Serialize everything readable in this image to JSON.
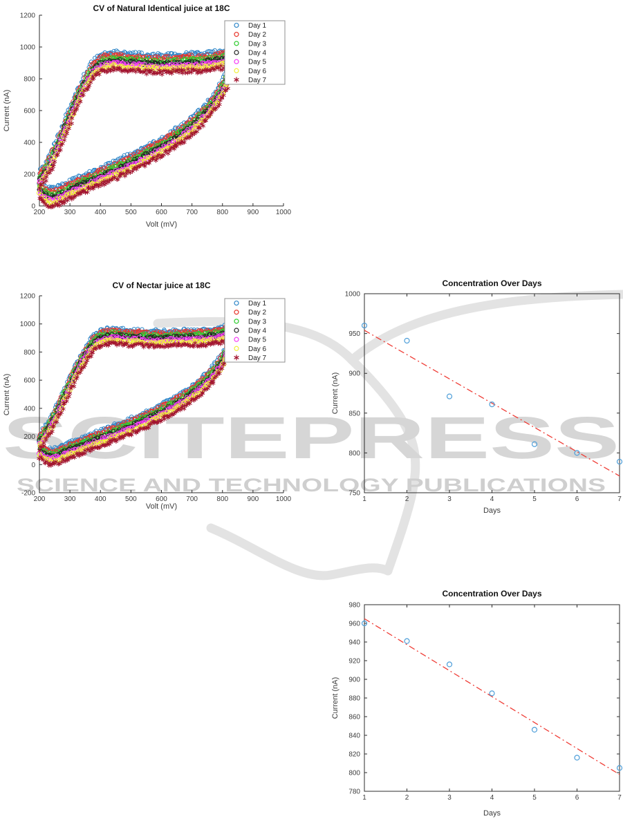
{
  "watermark": {
    "line1": "SCITEPRESS",
    "line2": "SCIENCE AND TECHNOLOGY PUBLICATIONS",
    "color_main": "#d6d6d6",
    "color_sub": "#cfcfcf",
    "swoosh_color": "#e3e3e3"
  },
  "chart_data": [
    {
      "id": "cv-natural",
      "type": "scatter",
      "title": "CV of Natural Identical juice at 18C",
      "xlabel": "Volt (mV)",
      "ylabel": "Current (nA)",
      "xlim": [
        200,
        1000
      ],
      "ylim": [
        0,
        1200
      ],
      "xticks": [
        200,
        300,
        400,
        500,
        600,
        700,
        800,
        900,
        1000
      ],
      "yticks": [
        0,
        200,
        400,
        600,
        800,
        1000,
        1200
      ],
      "grid": false,
      "box": false,
      "legend_position": "top-right-inside",
      "series": [
        {
          "name": "Day 1",
          "marker": "circle",
          "color": "#2E86C8",
          "offset_nA": 0
        },
        {
          "name": "Day 2",
          "marker": "circle",
          "color": "#E8362B",
          "offset_nA": -18
        },
        {
          "name": "Day 3",
          "marker": "circle",
          "color": "#2FCC2F",
          "offset_nA": -36
        },
        {
          "name": "Day 4",
          "marker": "circle",
          "color": "#222222",
          "offset_nA": -52
        },
        {
          "name": "Day 5",
          "marker": "circle",
          "color": "#F53DF5",
          "offset_nA": -68
        },
        {
          "name": "Day 6",
          "marker": "circle",
          "color": "#F0F03C",
          "offset_nA": -84
        },
        {
          "name": "Day 7",
          "marker": "asterisk",
          "color": "#A2142F",
          "offset_nA": -105
        }
      ],
      "loop_upper_nA": [
        [
          200,
          215
        ],
        [
          212,
          245
        ],
        [
          224,
          285
        ],
        [
          236,
          330
        ],
        [
          248,
          378
        ],
        [
          260,
          430
        ],
        [
          272,
          488
        ],
        [
          284,
          545
        ],
        [
          296,
          600
        ],
        [
          308,
          655
        ],
        [
          320,
          708
        ],
        [
          332,
          758
        ],
        [
          344,
          805
        ],
        [
          356,
          848
        ],
        [
          368,
          885
        ],
        [
          380,
          915
        ],
        [
          392,
          938
        ],
        [
          404,
          952
        ],
        [
          420,
          960
        ],
        [
          440,
          966
        ],
        [
          460,
          963
        ],
        [
          480,
          956
        ],
        [
          500,
          952
        ],
        [
          520,
          955
        ],
        [
          540,
          950
        ],
        [
          560,
          946
        ],
        [
          580,
          949
        ],
        [
          600,
          945
        ],
        [
          620,
          948
        ],
        [
          640,
          951
        ],
        [
          660,
          949
        ],
        [
          680,
          953
        ],
        [
          700,
          956
        ],
        [
          720,
          954
        ],
        [
          740,
          958
        ],
        [
          760,
          962
        ],
        [
          780,
          967
        ],
        [
          800,
          975
        ],
        [
          815,
          988
        ],
        [
          830,
          1008
        ],
        [
          845,
          1035
        ],
        [
          858,
          1068
        ],
        [
          870,
          1105
        ],
        [
          880,
          1140
        ],
        [
          886,
          1160
        ]
      ],
      "loop_lower_nA": [
        [
          200,
          155
        ],
        [
          208,
          138
        ],
        [
          216,
          124
        ],
        [
          226,
          112
        ],
        [
          238,
          106
        ],
        [
          250,
          110
        ],
        [
          262,
          118
        ],
        [
          276,
          130
        ],
        [
          290,
          143
        ],
        [
          305,
          157
        ],
        [
          320,
          170
        ],
        [
          335,
          183
        ],
        [
          350,
          196
        ],
        [
          365,
          209
        ],
        [
          380,
          221
        ],
        [
          400,
          238
        ],
        [
          420,
          255
        ],
        [
          440,
          271
        ],
        [
          460,
          288
        ],
        [
          480,
          305
        ],
        [
          500,
          323
        ],
        [
          520,
          342
        ],
        [
          540,
          362
        ],
        [
          560,
          382
        ],
        [
          580,
          402
        ],
        [
          600,
          424
        ],
        [
          620,
          447
        ],
        [
          640,
          471
        ],
        [
          660,
          497
        ],
        [
          680,
          525
        ],
        [
          700,
          556
        ],
        [
          720,
          590
        ],
        [
          740,
          628
        ],
        [
          758,
          668
        ],
        [
          775,
          710
        ],
        [
          790,
          755
        ],
        [
          804,
          805
        ],
        [
          818,
          862
        ],
        [
          832,
          922
        ],
        [
          846,
          982
        ],
        [
          858,
          1038
        ],
        [
          868,
          1085
        ]
      ],
      "scatter_jitter_nA": 13
    },
    {
      "id": "cv-nectar",
      "type": "scatter",
      "title": "CV of Nectar juice at 18C",
      "xlabel": "Volt (mV)",
      "ylabel": "Current (nA)",
      "xlim": [
        200,
        1000
      ],
      "ylim": [
        -200,
        1200
      ],
      "xticks": [
        200,
        300,
        400,
        500,
        600,
        700,
        800,
        900,
        1000
      ],
      "yticks": [
        -200,
        0,
        200,
        400,
        600,
        800,
        1000,
        1200
      ],
      "grid": false,
      "box": false,
      "legend_position": "top-right-inside",
      "series": [
        {
          "name": "Day 1",
          "marker": "circle",
          "color": "#2E86C8",
          "offset_nA": 0
        },
        {
          "name": "Day 2",
          "marker": "circle",
          "color": "#E8362B",
          "offset_nA": -15
        },
        {
          "name": "Day 3",
          "marker": "circle",
          "color": "#2FCC2F",
          "offset_nA": -32
        },
        {
          "name": "Day 4",
          "marker": "circle",
          "color": "#222222",
          "offset_nA": -48
        },
        {
          "name": "Day 5",
          "marker": "circle",
          "color": "#F53DF5",
          "offset_nA": -64
        },
        {
          "name": "Day 6",
          "marker": "circle",
          "color": "#F0F03C",
          "offset_nA": -82
        },
        {
          "name": "Day 7",
          "marker": "asterisk",
          "color": "#A2142F",
          "offset_nA": -104
        }
      ],
      "loop_upper_nA": [
        [
          200,
          215
        ],
        [
          212,
          245
        ],
        [
          224,
          285
        ],
        [
          236,
          330
        ],
        [
          248,
          378
        ],
        [
          260,
          430
        ],
        [
          272,
          488
        ],
        [
          284,
          545
        ],
        [
          296,
          600
        ],
        [
          308,
          655
        ],
        [
          320,
          708
        ],
        [
          332,
          758
        ],
        [
          344,
          805
        ],
        [
          356,
          848
        ],
        [
          368,
          885
        ],
        [
          380,
          915
        ],
        [
          392,
          938
        ],
        [
          404,
          952
        ],
        [
          420,
          960
        ],
        [
          440,
          966
        ],
        [
          460,
          963
        ],
        [
          480,
          956
        ],
        [
          500,
          952
        ],
        [
          520,
          955
        ],
        [
          540,
          950
        ],
        [
          560,
          946
        ],
        [
          580,
          949
        ],
        [
          600,
          945
        ],
        [
          620,
          948
        ],
        [
          640,
          951
        ],
        [
          660,
          949
        ],
        [
          680,
          953
        ],
        [
          700,
          956
        ],
        [
          720,
          954
        ],
        [
          740,
          958
        ],
        [
          760,
          962
        ],
        [
          780,
          967
        ],
        [
          800,
          975
        ],
        [
          815,
          988
        ],
        [
          830,
          1008
        ],
        [
          845,
          1035
        ],
        [
          858,
          1068
        ],
        [
          870,
          1105
        ],
        [
          880,
          1140
        ],
        [
          886,
          1160
        ]
      ],
      "loop_lower_nA": [
        [
          200,
          155
        ],
        [
          208,
          138
        ],
        [
          216,
          124
        ],
        [
          226,
          112
        ],
        [
          238,
          106
        ],
        [
          250,
          110
        ],
        [
          262,
          118
        ],
        [
          276,
          130
        ],
        [
          290,
          143
        ],
        [
          305,
          157
        ],
        [
          320,
          170
        ],
        [
          335,
          183
        ],
        [
          350,
          196
        ],
        [
          365,
          209
        ],
        [
          380,
          221
        ],
        [
          400,
          238
        ],
        [
          420,
          255
        ],
        [
          440,
          271
        ],
        [
          460,
          288
        ],
        [
          480,
          305
        ],
        [
          500,
          323
        ],
        [
          520,
          342
        ],
        [
          540,
          362
        ],
        [
          560,
          382
        ],
        [
          580,
          402
        ],
        [
          600,
          424
        ],
        [
          620,
          447
        ],
        [
          640,
          471
        ],
        [
          660,
          497
        ],
        [
          680,
          525
        ],
        [
          700,
          556
        ],
        [
          720,
          590
        ],
        [
          740,
          628
        ],
        [
          758,
          668
        ],
        [
          775,
          710
        ],
        [
          790,
          755
        ],
        [
          804,
          805
        ],
        [
          818,
          862
        ],
        [
          832,
          922
        ],
        [
          846,
          982
        ],
        [
          858,
          1038
        ],
        [
          868,
          1085
        ]
      ],
      "scatter_jitter_nA": 13
    },
    {
      "id": "concentration-natural",
      "type": "scatter",
      "title": "Concentration Over Days",
      "xlabel": "Days",
      "ylabel": "Current (nA)",
      "xlim": [
        1,
        7
      ],
      "ylim": [
        750,
        1000
      ],
      "xticks": [
        1,
        2,
        3,
        4,
        5,
        6,
        7
      ],
      "yticks": [
        750,
        800,
        850,
        900,
        950,
        1000
      ],
      "grid": false,
      "box": true,
      "marker_color": "#4D9ED9",
      "points": [
        [
          1,
          960
        ],
        [
          2,
          941
        ],
        [
          3,
          871
        ],
        [
          4,
          861
        ],
        [
          5,
          811
        ],
        [
          6,
          800
        ],
        [
          7,
          789
        ]
      ],
      "trendline": {
        "from": [
          1,
          954
        ],
        "to": [
          7,
          771
        ],
        "color": "#EF3B34",
        "style": "dash-dot"
      }
    },
    {
      "id": "concentration-nectar",
      "type": "scatter",
      "title": "Concentration Over Days",
      "xlabel": "Days",
      "ylabel": "Current (nA)",
      "xlim": [
        1,
        7
      ],
      "ylim": [
        780,
        980
      ],
      "xticks": [
        1,
        2,
        3,
        4,
        5,
        6,
        7
      ],
      "yticks": [
        780,
        800,
        820,
        840,
        860,
        880,
        900,
        920,
        940,
        960,
        980
      ],
      "grid": false,
      "box": true,
      "marker_color": "#4D9ED9",
      "points": [
        [
          1,
          960
        ],
        [
          2,
          941
        ],
        [
          3,
          916
        ],
        [
          4,
          885
        ],
        [
          5,
          846
        ],
        [
          6,
          816
        ],
        [
          7,
          805
        ]
      ],
      "trendline": {
        "from": [
          1,
          965
        ],
        "to": [
          7,
          798
        ],
        "color": "#EF3B34",
        "style": "dash-dot"
      }
    }
  ]
}
